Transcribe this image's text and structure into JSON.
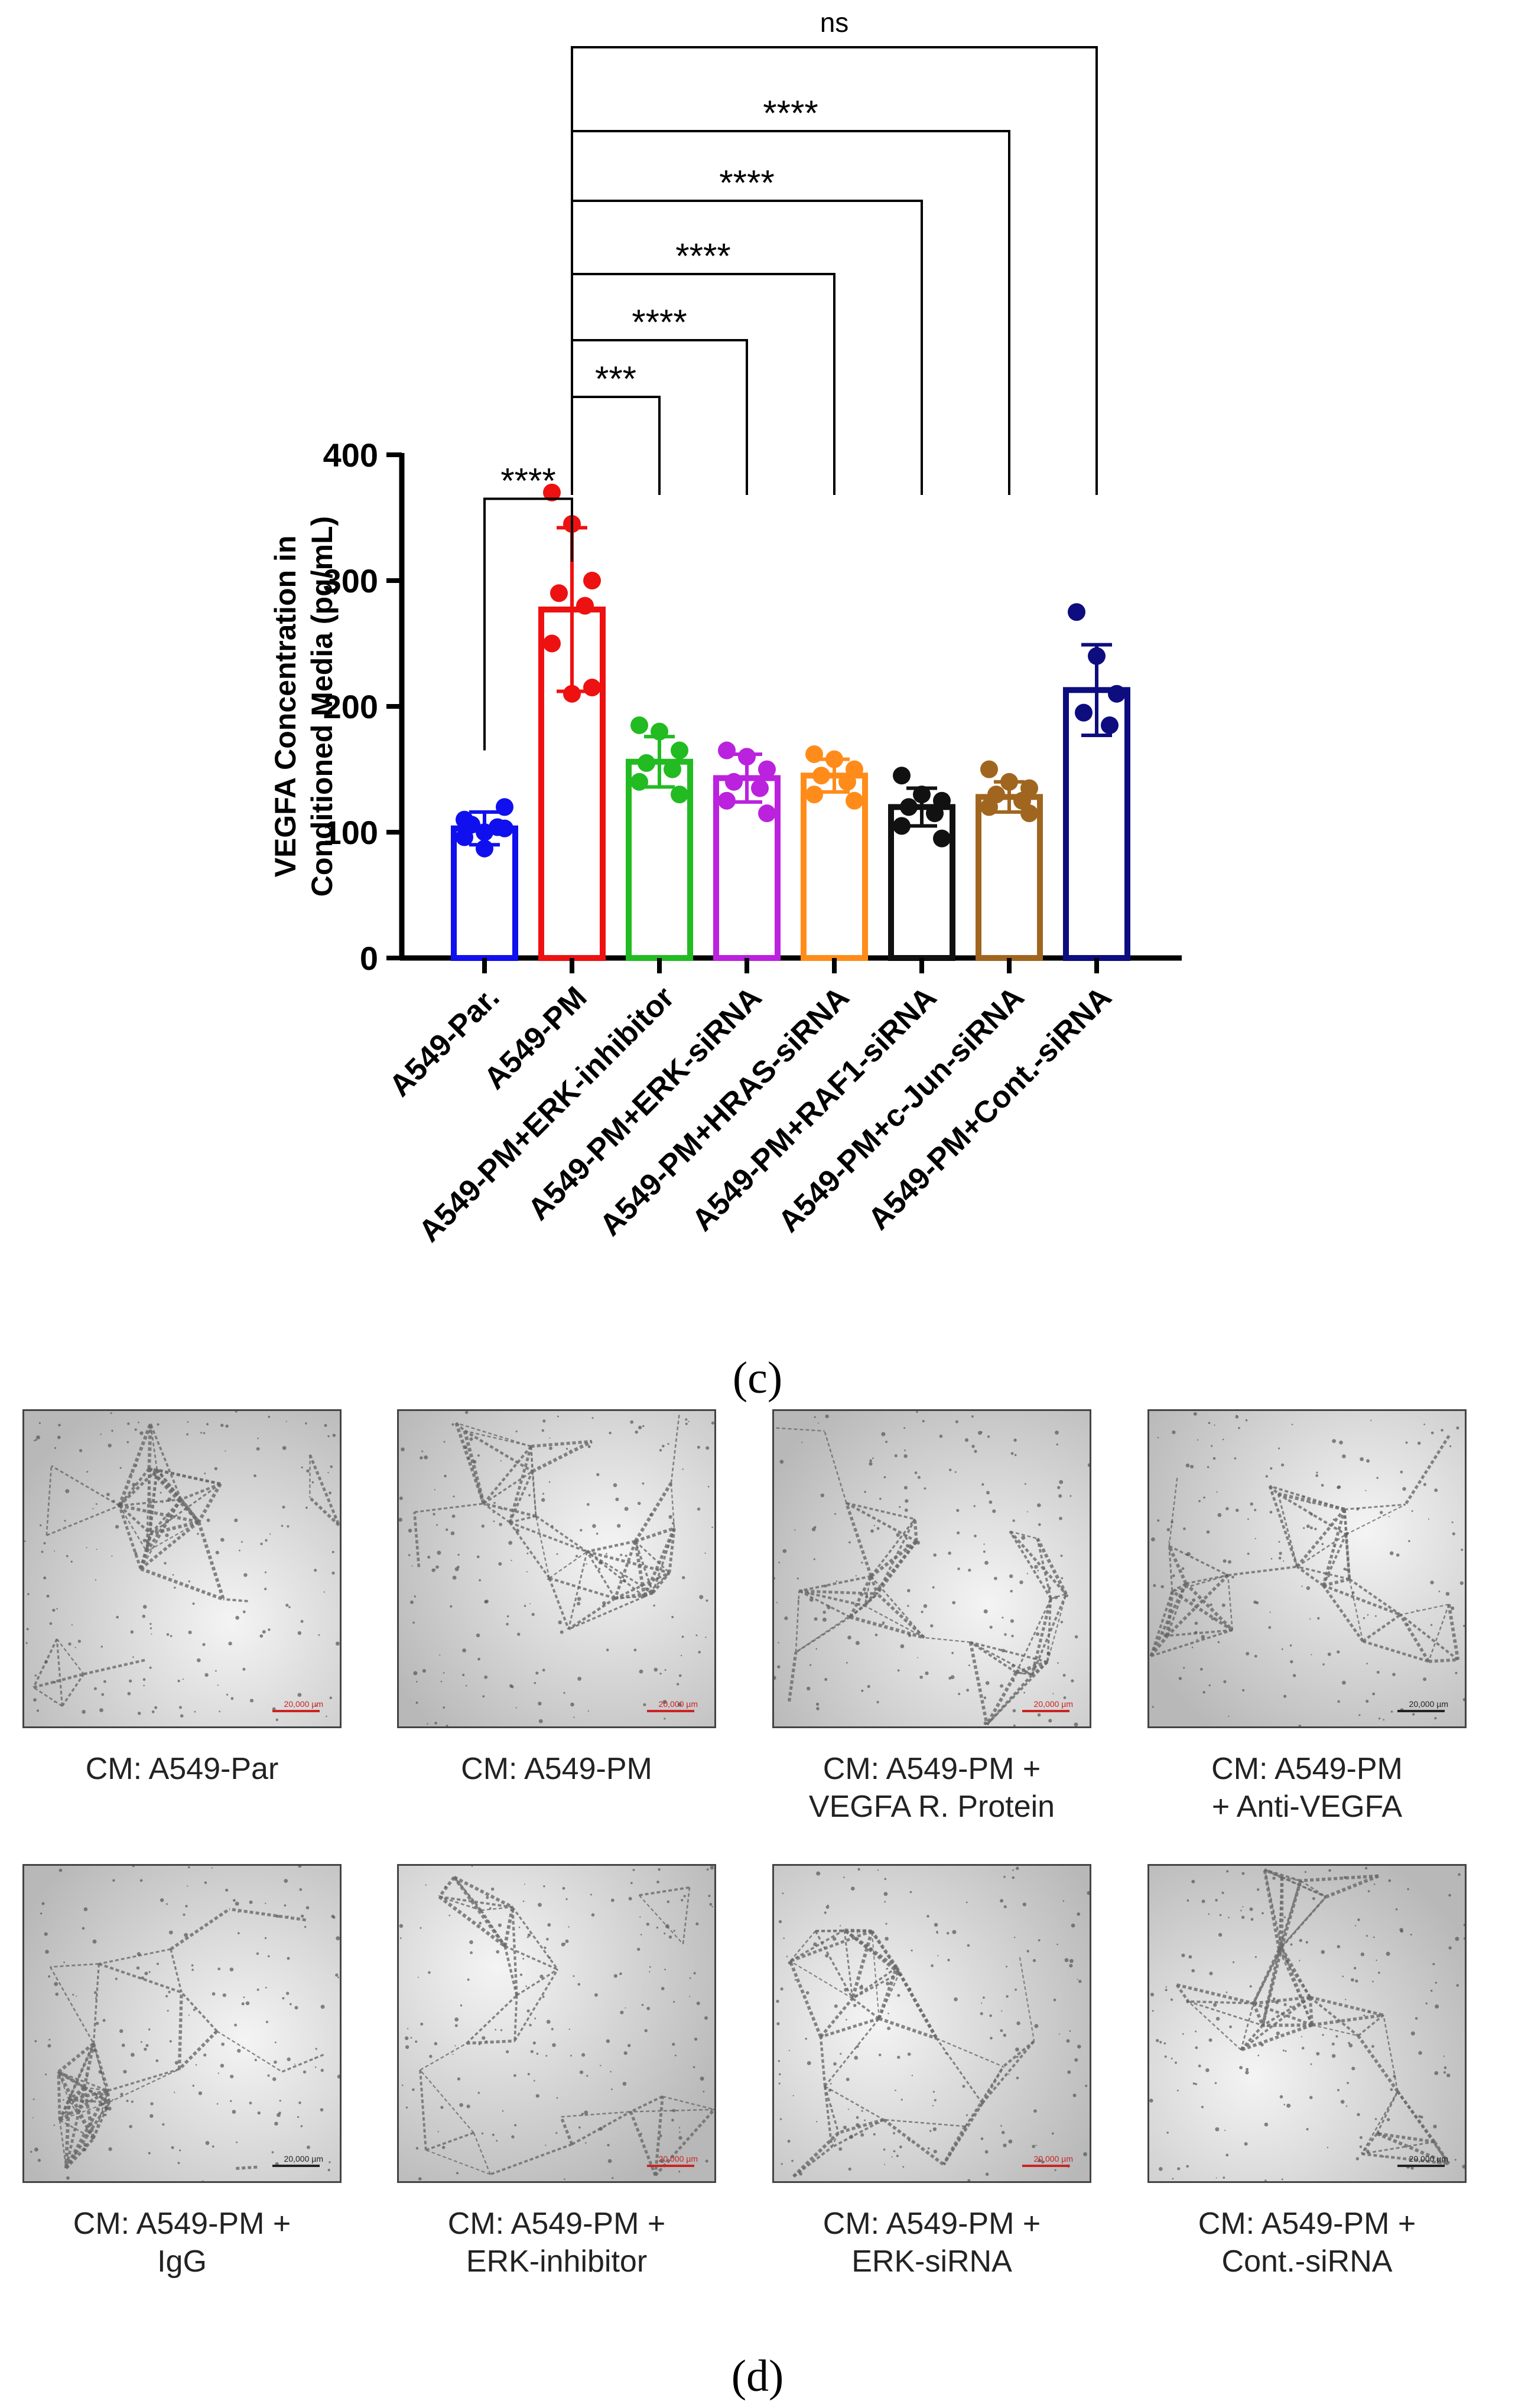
{
  "chart_data": {
    "type": "bar",
    "ylabel_line1": "VEGFA Concentration in",
    "ylabel_line2": "Conditioned Media (pg/mL)",
    "ylim": [
      0,
      400
    ],
    "yticks": [
      0,
      100,
      200,
      300,
      400
    ],
    "categories": [
      "A549-Par.",
      "A549-PM",
      "A549-PM+ERK-inhibitor",
      "A549-PM+ERK-siRNA",
      "A549-PM+HRAS-siRNA",
      "A549-PM+RAF1-siRNA",
      "A549-PM+c-Jun-siRNA",
      "A549-PM+Cont.-siRNA"
    ],
    "values": [
      103,
      277,
      156,
      143,
      145,
      120,
      128,
      213
    ],
    "errors": [
      13,
      65,
      20,
      19,
      13,
      15,
      12,
      36
    ],
    "colors": [
      "#1010ee",
      "#ee1111",
      "#22bb22",
      "#bb22dd",
      "#ff8c1a",
      "#111111",
      "#a0661f",
      "#0d0d80"
    ],
    "points": [
      [
        96,
        100,
        103,
        106,
        104,
        110,
        120,
        87
      ],
      [
        370,
        345,
        300,
        290,
        280,
        250,
        215,
        210
      ],
      [
        185,
        180,
        165,
        155,
        150,
        140,
        130
      ],
      [
        165,
        160,
        150,
        140,
        135,
        125,
        115
      ],
      [
        162,
        158,
        150,
        145,
        140,
        130,
        125
      ],
      [
        145,
        130,
        125,
        120,
        115,
        105,
        95
      ],
      [
        150,
        140,
        135,
        130,
        125,
        120,
        115
      ],
      [
        275,
        240,
        210,
        195,
        185
      ]
    ],
    "comparisons": [
      {
        "from": 0,
        "to": 1,
        "label": "****"
      },
      {
        "from": 1,
        "to": 2,
        "label": "***"
      },
      {
        "from": 1,
        "to": 3,
        "label": "****"
      },
      {
        "from": 1,
        "to": 4,
        "label": "****"
      },
      {
        "from": 1,
        "to": 5,
        "label": "****"
      },
      {
        "from": 1,
        "to": 6,
        "label": "****"
      },
      {
        "from": 1,
        "to": 7,
        "label": "ns"
      }
    ]
  },
  "panel_c_label": "(c)",
  "panel_d_label": "(d)",
  "images": [
    {
      "line1": "CM: A549-Par",
      "line2": "",
      "scale": "20,000 µm",
      "scale_color": "#cc2222"
    },
    {
      "line1": "CM: A549-PM",
      "line2": "",
      "scale": "20,000 µm",
      "scale_color": "#cc2222"
    },
    {
      "line1": "CM: A549-PM +",
      "line2": "VEGFA R. Protein",
      "scale": "20,000 µm",
      "scale_color": "#cc2222"
    },
    {
      "line1": "CM: A549-PM",
      "line2": "+ Anti-VEGFA",
      "scale": "20,000 µm",
      "scale_color": "#222222"
    },
    {
      "line1": "CM: A549-PM +",
      "line2": "IgG",
      "scale": "20,000 µm",
      "scale_color": "#222222"
    },
    {
      "line1": "CM: A549-PM +",
      "line2": "ERK-inhibitor",
      "scale": "20,000 µm",
      "scale_color": "#cc2222"
    },
    {
      "line1": "CM: A549-PM +",
      "line2": "ERK-siRNA",
      "scale": "20,000 µm",
      "scale_color": "#cc2222"
    },
    {
      "line1": "CM: A549-PM +",
      "line2": "Cont.-siRNA",
      "scale": "20,000 µm",
      "scale_color": "#222222"
    }
  ]
}
